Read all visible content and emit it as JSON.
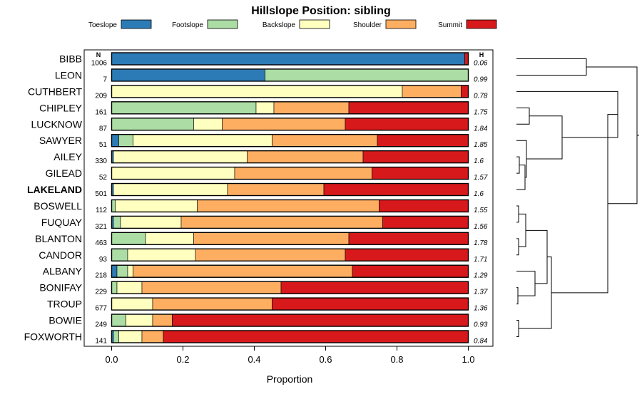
{
  "chart_data": {
    "type": "stacked-bar-horizontal",
    "title": "Hillslope Position: sibling",
    "xlabel": "Proportion",
    "xlim": [
      0,
      1
    ],
    "xticks": [
      "0.0",
      "0.2",
      "0.4",
      "0.6",
      "0.8",
      "1.0"
    ],
    "col_header_n": "N",
    "col_header_h": "H",
    "classes": [
      {
        "name": "Toeslope",
        "color": "#2c7bb6"
      },
      {
        "name": "Footslope",
        "color": "#abdda4"
      },
      {
        "name": "Backslope",
        "color": "#ffffbf"
      },
      {
        "name": "Shoulder",
        "color": "#fdae61"
      },
      {
        "name": "Summit",
        "color": "#d7191c"
      }
    ],
    "rows": [
      {
        "name": "BIBB",
        "n": "1006",
        "h": "0.06",
        "values": [
          0.99,
          0,
          0,
          0,
          0.01
        ],
        "bold": false
      },
      {
        "name": "LEON",
        "n": "7",
        "h": "0.99",
        "values": [
          0.43,
          0.57,
          0,
          0,
          0
        ],
        "bold": false
      },
      {
        "name": "CUTHBERT",
        "n": "209",
        "h": "0.78",
        "values": [
          0,
          0,
          0.815,
          0.165,
          0.02
        ],
        "bold": false
      },
      {
        "name": "CHIPLEY",
        "n": "161",
        "h": "1.75",
        "values": [
          0,
          0.405,
          0.05,
          0.21,
          0.335
        ],
        "bold": false
      },
      {
        "name": "LUCKNOW",
        "n": "87",
        "h": "1.84",
        "values": [
          0,
          0.23,
          0.08,
          0.345,
          0.345
        ],
        "bold": false
      },
      {
        "name": "SAWYER",
        "n": "51",
        "h": "1.85",
        "values": [
          0.02,
          0.04,
          0.39,
          0.295,
          0.255
        ],
        "bold": false
      },
      {
        "name": "AILEY",
        "n": "330",
        "h": "1.6",
        "values": [
          0.005,
          0,
          0.375,
          0.325,
          0.295
        ],
        "bold": false
      },
      {
        "name": "GILEAD",
        "n": "52",
        "h": "1.57",
        "values": [
          0,
          0,
          0.345,
          0.385,
          0.27
        ],
        "bold": false
      },
      {
        "name": "LAKELAND",
        "n": "501",
        "h": "1.6",
        "values": [
          0.005,
          0,
          0.32,
          0.27,
          0.405
        ],
        "bold": true
      },
      {
        "name": "BOSWELL",
        "n": "112",
        "h": "1.55",
        "values": [
          0,
          0.01,
          0.23,
          0.51,
          0.25
        ],
        "bold": false
      },
      {
        "name": "FUQUAY",
        "n": "321",
        "h": "1.56",
        "values": [
          0.005,
          0.02,
          0.17,
          0.565,
          0.24
        ],
        "bold": false
      },
      {
        "name": "BLANTON",
        "n": "463",
        "h": "1.78",
        "values": [
          0,
          0.095,
          0.135,
          0.435,
          0.335
        ],
        "bold": false
      },
      {
        "name": "CANDOR",
        "n": "93",
        "h": "1.71",
        "values": [
          0,
          0.045,
          0.19,
          0.42,
          0.345
        ],
        "bold": false
      },
      {
        "name": "ALBANY",
        "n": "218",
        "h": "1.29",
        "values": [
          0.015,
          0.03,
          0.015,
          0.615,
          0.325
        ],
        "bold": false
      },
      {
        "name": "BONIFAY",
        "n": "229",
        "h": "1.37",
        "values": [
          0,
          0.015,
          0.07,
          0.39,
          0.525
        ],
        "bold": false
      },
      {
        "name": "TROUP",
        "n": "677",
        "h": "1.36",
        "values": [
          0,
          0,
          0.115,
          0.335,
          0.55
        ],
        "bold": false
      },
      {
        "name": "BOWIE",
        "n": "249",
        "h": "0.93",
        "values": [
          0,
          0.04,
          0.075,
          0.055,
          0.83
        ],
        "bold": false
      },
      {
        "name": "FOXWORTH",
        "n": "141",
        "h": "0.84",
        "values": [
          0.005,
          0.015,
          0.065,
          0.06,
          0.855
        ],
        "bold": false
      }
    ]
  }
}
